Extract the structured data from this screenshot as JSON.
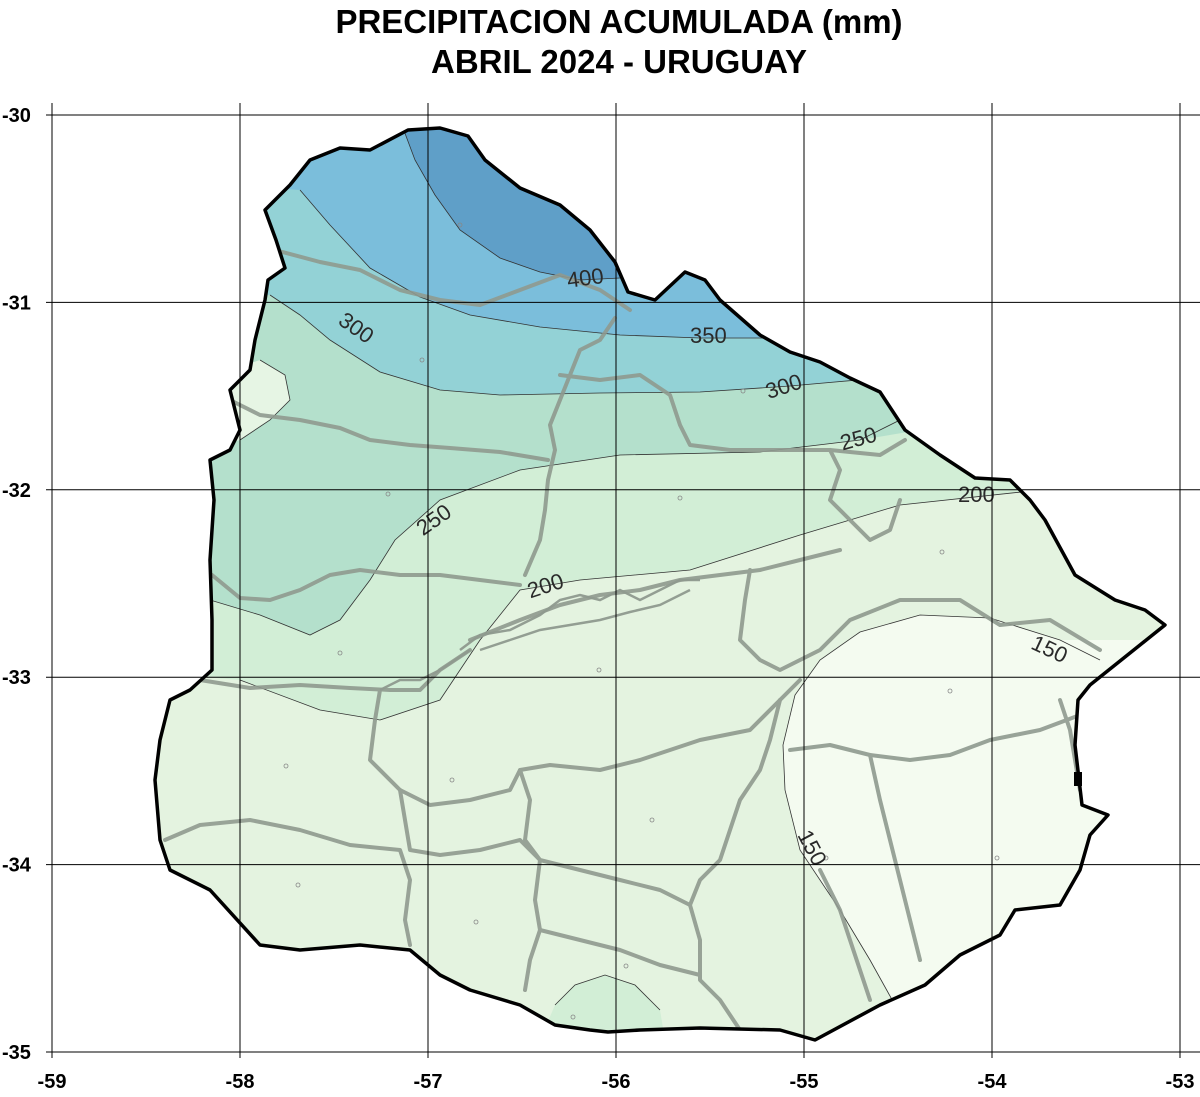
{
  "title": {
    "line1": "PRECIPITACION ACUMULADA (mm)",
    "line2": "ABRIL 2024  -  URUGUAY"
  },
  "axes": {
    "x_ticks": [
      "-59",
      "-58",
      "-57",
      "-56",
      "-55",
      "-54",
      "-53"
    ],
    "y_ticks": [
      "-30",
      "-31",
      "-32",
      "-33",
      "-34",
      "-35"
    ],
    "lon_range": [
      -59,
      -53
    ],
    "lat_range": [
      -35,
      -30
    ],
    "grid": true
  },
  "contours": {
    "levels": [
      150,
      200,
      250,
      300,
      350,
      400
    ],
    "labels": [
      "400",
      "350",
      "300",
      "300",
      "250",
      "250",
      "200",
      "200",
      "150",
      "150"
    ]
  },
  "colors": {
    "above_400": "#5f9fc8",
    "350_400": "#7bbedb",
    "300_350": "#93d2d6",
    "250_300": "#b4e0cc",
    "200_250": "#d2eed6",
    "150_200": "#e4f3e0",
    "below_150": "#f4fbf0",
    "border": "#000000",
    "department_lines": "#8f9a8f",
    "grid": "#000000"
  }
}
